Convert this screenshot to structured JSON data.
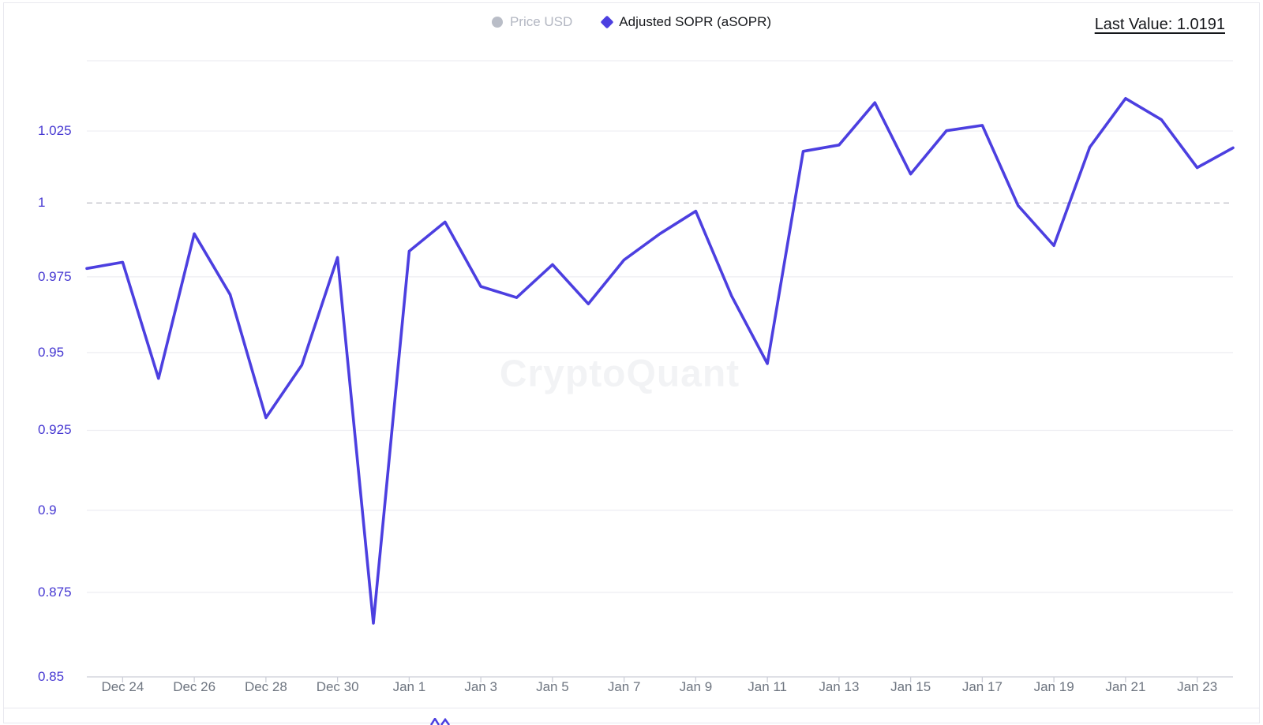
{
  "watermark": "CryptoQuant",
  "header": {
    "last_value_label": "Last Value: 1.0191",
    "last_value": 1.0191
  },
  "legend": {
    "position": "top-center",
    "items": [
      {
        "label": "Price USD",
        "marker": "circle",
        "color": "#b9bdc7",
        "disabled": true
      },
      {
        "label": "Adjusted SOPR (aSOPR)",
        "marker": "diamond",
        "color": "#4c3fe0",
        "disabled": false
      }
    ]
  },
  "colors": {
    "accent": "#4c3fe0",
    "y_label": "#4638d2",
    "x_label": "#6e7580",
    "grid": "#ededf2",
    "axis": "#ccced8",
    "baseline_dash": "#c2c3ca",
    "card_border": "#e8e8ef"
  },
  "chart_data": {
    "type": "line",
    "title": "Adjusted SOPR (aSOPR)",
    "y_scale": "log",
    "ylim": [
      0.85,
      1.05
    ],
    "grid": true,
    "legend_position": "top-center",
    "x": [
      "Dec 23",
      "Dec 24",
      "Dec 25",
      "Dec 26",
      "Dec 27",
      "Dec 28",
      "Dec 29",
      "Dec 30",
      "Dec 31",
      "Jan 1",
      "Jan 2",
      "Jan 3",
      "Jan 4",
      "Jan 5",
      "Jan 6",
      "Jan 7",
      "Jan 8",
      "Jan 9",
      "Jan 10",
      "Jan 11",
      "Jan 12",
      "Jan 13",
      "Jan 14",
      "Jan 15",
      "Jan 16",
      "Jan 17",
      "Jan 18",
      "Jan 19",
      "Jan 20",
      "Jan 21",
      "Jan 22",
      "Jan 23",
      "Jan 24"
    ],
    "series": [
      {
        "name": "Adjusted SOPR (aSOPR)",
        "color": "#4c3fe0",
        "values": [
          0.9778,
          0.9799,
          0.9416,
          0.9895,
          0.9691,
          0.929,
          0.9459,
          0.9815,
          0.8658,
          0.9836,
          0.9935,
          0.9718,
          0.9681,
          0.9791,
          0.966,
          0.9807,
          0.9895,
          0.9972,
          0.9686,
          0.9464,
          1.0179,
          1.0201,
          1.035,
          1.01,
          1.0251,
          1.027,
          0.9991,
          0.9855,
          1.0193,
          1.0365,
          1.029,
          1.0122,
          1.0191
        ]
      }
    ],
    "baseline": {
      "value": 1,
      "style": "dashed"
    },
    "y_tick_labels": [
      "1.025",
      "1",
      "0.975",
      "0.95",
      "0.925",
      "0.9",
      "0.875",
      "0.85"
    ],
    "y_tick_values": [
      1.025,
      1,
      0.975,
      0.95,
      0.925,
      0.9,
      0.875,
      0.85
    ],
    "unlabeled_top_gridline": 1.05,
    "x_tick_indices": [
      1,
      3,
      5,
      7,
      9,
      11,
      13,
      15,
      17,
      19,
      21,
      23,
      25,
      27,
      29,
      31
    ],
    "x_tick_labels": [
      "Dec 24",
      "Dec 26",
      "Dec 28",
      "Dec 30",
      "Jan 1",
      "Jan 3",
      "Jan 5",
      "Jan 7",
      "Jan 9",
      "Jan 11",
      "Jan 13",
      "Jan 15",
      "Jan 17",
      "Jan 19",
      "Jan 21",
      "Jan 23"
    ]
  }
}
